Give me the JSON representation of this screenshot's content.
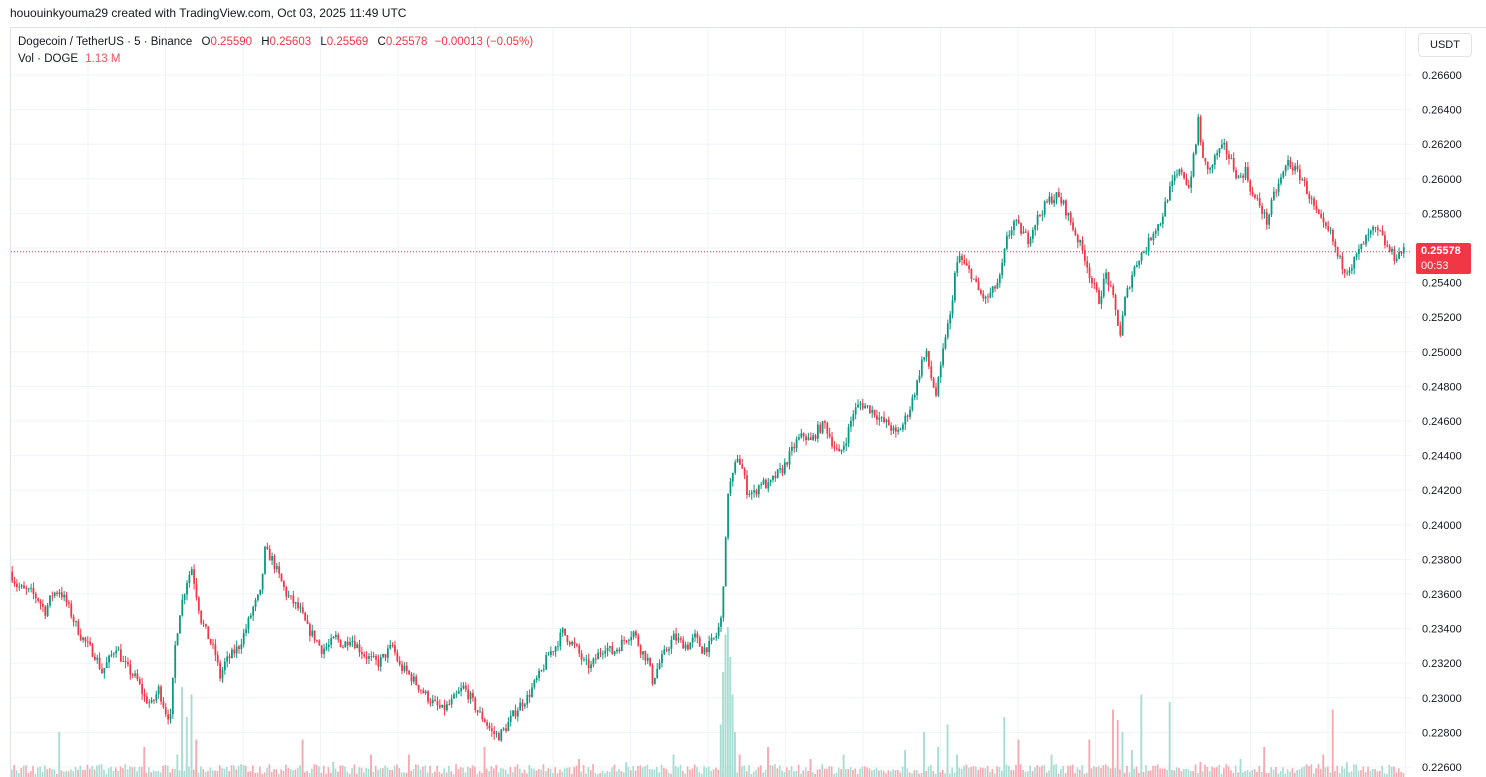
{
  "header": {
    "credit": "hououinkyouma29 created with TradingView.com, Oct 03, 2025 11:49 UTC"
  },
  "legend": {
    "symbol": "Dogecoin / TetherUS · 5 · Binance",
    "open_key": "O",
    "open": "0.25590",
    "high_key": "H",
    "high": "0.25603",
    "low_key": "L",
    "low": "0.25569",
    "close_key": "C",
    "close": "0.25578",
    "change": "−0.00013 (−0.05%)",
    "vol_label": "Vol · DOGE",
    "vol_value": "1.13 M"
  },
  "price_axis": {
    "unit": "USDT",
    "last_price": "0.25578",
    "countdown": "00:53"
  },
  "colors": {
    "up": "#089981",
    "down": "#f23645",
    "vol_up": "#a7ddd2",
    "vol_down": "#f7a9af",
    "grid": "#f0f3fa"
  },
  "chart_data": {
    "type": "candlestick",
    "ylim": [
      0.2258,
      0.2672
    ],
    "yticks": [
      "0.26600",
      "0.26400",
      "0.26200",
      "0.26000",
      "0.25800",
      "0.25600",
      "0.25400",
      "0.25200",
      "0.25000",
      "0.24800",
      "0.24600",
      "0.24400",
      "0.24200",
      "0.24000",
      "0.23800",
      "0.23600",
      "0.23400",
      "0.23200",
      "0.23000",
      "0.22800",
      "0.22600"
    ],
    "last_price": 0.25578,
    "close_path": [
      [
        0,
        0.2373
      ],
      [
        3,
        0.2365
      ],
      [
        6,
        0.2362
      ],
      [
        9,
        0.2361
      ],
      [
        12,
        0.2357
      ],
      [
        15,
        0.235
      ],
      [
        18,
        0.236
      ],
      [
        21,
        0.2362
      ],
      [
        24,
        0.2355
      ],
      [
        27,
        0.2345
      ],
      [
        30,
        0.2336
      ],
      [
        33,
        0.233
      ],
      [
        36,
        0.2325
      ],
      [
        39,
        0.2315
      ],
      [
        42,
        0.2322
      ],
      [
        45,
        0.233
      ],
      [
        48,
        0.232
      ],
      [
        51,
        0.2315
      ],
      [
        54,
        0.231
      ],
      [
        57,
        0.23
      ],
      [
        60,
        0.2296
      ],
      [
        63,
        0.2305
      ],
      [
        66,
        0.2292
      ],
      [
        68,
        0.2288
      ],
      [
        70,
        0.233
      ],
      [
        72,
        0.235
      ],
      [
        75,
        0.2368
      ],
      [
        77,
        0.2375
      ],
      [
        79,
        0.236
      ],
      [
        81,
        0.2345
      ],
      [
        84,
        0.2335
      ],
      [
        87,
        0.2325
      ],
      [
        89,
        0.2312
      ],
      [
        91,
        0.232
      ],
      [
        94,
        0.2325
      ],
      [
        97,
        0.233
      ],
      [
        100,
        0.234
      ],
      [
        103,
        0.2352
      ],
      [
        106,
        0.236
      ],
      [
        108,
        0.2385
      ],
      [
        111,
        0.238
      ],
      [
        114,
        0.237
      ],
      [
        117,
        0.236
      ],
      [
        120,
        0.2355
      ],
      [
        123,
        0.235
      ],
      [
        126,
        0.234
      ],
      [
        129,
        0.2335
      ],
      [
        132,
        0.2328
      ],
      [
        135,
        0.233
      ],
      [
        138,
        0.2335
      ],
      [
        141,
        0.233
      ],
      [
        144,
        0.2335
      ],
      [
        147,
        0.233
      ],
      [
        150,
        0.2325
      ],
      [
        153,
        0.2322
      ],
      [
        156,
        0.232
      ],
      [
        159,
        0.2325
      ],
      [
        162,
        0.233
      ],
      [
        165,
        0.2318
      ],
      [
        168,
        0.2315
      ],
      [
        171,
        0.231
      ],
      [
        174,
        0.2305
      ],
      [
        177,
        0.23
      ],
      [
        180,
        0.2296
      ],
      [
        183,
        0.2293
      ],
      [
        186,
        0.2296
      ],
      [
        189,
        0.2301
      ],
      [
        192,
        0.2306
      ],
      [
        195,
        0.23
      ],
      [
        198,
        0.2292
      ],
      [
        201,
        0.2287
      ],
      [
        204,
        0.228
      ],
      [
        207,
        0.2278
      ],
      [
        210,
        0.2283
      ],
      [
        213,
        0.229
      ],
      [
        216,
        0.2296
      ],
      [
        219,
        0.23
      ],
      [
        222,
        0.2308
      ],
      [
        225,
        0.2315
      ],
      [
        228,
        0.2325
      ],
      [
        231,
        0.233
      ],
      [
        234,
        0.2338
      ],
      [
        237,
        0.2333
      ],
      [
        240,
        0.2328
      ],
      [
        243,
        0.232
      ],
      [
        246,
        0.2318
      ],
      [
        249,
        0.2325
      ],
      [
        252,
        0.233
      ],
      [
        255,
        0.2326
      ],
      [
        258,
        0.233
      ],
      [
        261,
        0.2335
      ],
      [
        264,
        0.2338
      ],
      [
        267,
        0.2328
      ],
      [
        270,
        0.2322
      ],
      [
        272,
        0.231
      ],
      [
        275,
        0.232
      ],
      [
        278,
        0.2328
      ],
      [
        281,
        0.2335
      ],
      [
        284,
        0.2332
      ],
      [
        287,
        0.233
      ],
      [
        290,
        0.2335
      ],
      [
        293,
        0.2328
      ],
      [
        296,
        0.233
      ],
      [
        299,
        0.2336
      ],
      [
        301,
        0.2345
      ],
      [
        303,
        0.239
      ],
      [
        304,
        0.242
      ],
      [
        306,
        0.2428
      ],
      [
        308,
        0.244
      ],
      [
        310,
        0.2432
      ],
      [
        312,
        0.242
      ],
      [
        315,
        0.2418
      ],
      [
        318,
        0.2425
      ],
      [
        321,
        0.2422
      ],
      [
        324,
        0.2428
      ],
      [
        327,
        0.2432
      ],
      [
        330,
        0.244
      ],
      [
        333,
        0.2448
      ],
      [
        336,
        0.2452
      ],
      [
        339,
        0.2448
      ],
      [
        342,
        0.2455
      ],
      [
        345,
        0.2458
      ],
      [
        348,
        0.2448
      ],
      [
        351,
        0.244
      ],
      [
        354,
        0.245
      ],
      [
        357,
        0.2465
      ],
      [
        360,
        0.247
      ],
      [
        363,
        0.2468
      ],
      [
        366,
        0.2465
      ],
      [
        369,
        0.246
      ],
      [
        372,
        0.2458
      ],
      [
        375,
        0.2452
      ],
      [
        378,
        0.2458
      ],
      [
        381,
        0.2468
      ],
      [
        384,
        0.2482
      ],
      [
        386,
        0.2495
      ],
      [
        388,
        0.2498
      ],
      [
        390,
        0.2485
      ],
      [
        392,
        0.2475
      ],
      [
        394,
        0.249
      ],
      [
        396,
        0.251
      ],
      [
        398,
        0.252
      ],
      [
        400,
        0.2545
      ],
      [
        402,
        0.2555
      ],
      [
        404,
        0.255
      ],
      [
        407,
        0.2545
      ],
      [
        410,
        0.2535
      ],
      [
        413,
        0.253
      ],
      [
        416,
        0.2535
      ],
      [
        419,
        0.2542
      ],
      [
        422,
        0.2565
      ],
      [
        425,
        0.2575
      ],
      [
        428,
        0.257
      ],
      [
        431,
        0.2565
      ],
      [
        434,
        0.2575
      ],
      [
        437,
        0.2582
      ],
      [
        440,
        0.2588
      ],
      [
        443,
        0.259
      ],
      [
        446,
        0.2585
      ],
      [
        449,
        0.2575
      ],
      [
        452,
        0.2565
      ],
      [
        455,
        0.2555
      ],
      [
        458,
        0.254
      ],
      [
        461,
        0.253
      ],
      [
        464,
        0.2545
      ],
      [
        467,
        0.253
      ],
      [
        470,
        0.251
      ],
      [
        472,
        0.253
      ],
      [
        475,
        0.2545
      ],
      [
        478,
        0.2555
      ],
      [
        481,
        0.256
      ],
      [
        484,
        0.257
      ],
      [
        487,
        0.2575
      ],
      [
        490,
        0.259
      ],
      [
        493,
        0.26
      ],
      [
        496,
        0.2605
      ],
      [
        499,
        0.2595
      ],
      [
        502,
        0.262
      ],
      [
        503,
        0.2635
      ],
      [
        505,
        0.261
      ],
      [
        508,
        0.2605
      ],
      [
        511,
        0.2615
      ],
      [
        514,
        0.2618
      ],
      [
        517,
        0.261
      ],
      [
        520,
        0.26
      ],
      [
        523,
        0.2605
      ],
      [
        526,
        0.259
      ],
      [
        529,
        0.2585
      ],
      [
        532,
        0.2575
      ],
      [
        535,
        0.259
      ],
      [
        538,
        0.26
      ],
      [
        541,
        0.261
      ],
      [
        544,
        0.2605
      ],
      [
        547,
        0.26
      ],
      [
        550,
        0.259
      ],
      [
        553,
        0.258
      ],
      [
        556,
        0.2572
      ],
      [
        559,
        0.2568
      ],
      [
        562,
        0.2555
      ],
      [
        565,
        0.2548
      ],
      [
        568,
        0.255
      ],
      [
        571,
        0.2558
      ],
      [
        574,
        0.2565
      ],
      [
        577,
        0.257
      ],
      [
        580,
        0.2568
      ],
      [
        583,
        0.256
      ],
      [
        586,
        0.2555
      ],
      [
        589,
        0.2558
      ]
    ],
    "volume_spikes": [
      [
        20,
        0.3
      ],
      [
        56,
        0.2
      ],
      [
        70,
        0.15
      ],
      [
        72,
        0.6
      ],
      [
        74,
        0.4
      ],
      [
        76,
        0.55
      ],
      [
        78,
        0.25
      ],
      [
        98,
        0.08
      ],
      [
        123,
        0.25
      ],
      [
        136,
        0.1
      ],
      [
        152,
        0.15
      ],
      [
        168,
        0.15
      ],
      [
        200,
        0.2
      ],
      [
        219,
        0.08
      ],
      [
        240,
        0.12
      ],
      [
        260,
        0.1
      ],
      [
        280,
        0.15
      ],
      [
        300,
        0.35
      ],
      [
        301,
        0.7
      ],
      [
        302,
        0.95
      ],
      [
        303,
        1.0
      ],
      [
        304,
        0.8
      ],
      [
        305,
        0.55
      ],
      [
        306,
        0.3
      ],
      [
        308,
        0.15
      ],
      [
        320,
        0.2
      ],
      [
        338,
        0.12
      ],
      [
        352,
        0.15
      ],
      [
        378,
        0.18
      ],
      [
        386,
        0.3
      ],
      [
        392,
        0.2
      ],
      [
        396,
        0.35
      ],
      [
        400,
        0.15
      ],
      [
        420,
        0.4
      ],
      [
        426,
        0.25
      ],
      [
        440,
        0.15
      ],
      [
        456,
        0.25
      ],
      [
        466,
        0.45
      ],
      [
        468,
        0.38
      ],
      [
        470,
        0.3
      ],
      [
        474,
        0.18
      ],
      [
        478,
        0.55
      ],
      [
        490,
        0.5
      ],
      [
        503,
        0.1
      ],
      [
        520,
        0.12
      ],
      [
        530,
        0.2
      ],
      [
        555,
        0.15
      ],
      [
        559,
        0.45
      ],
      [
        565,
        0.1
      ]
    ]
  }
}
